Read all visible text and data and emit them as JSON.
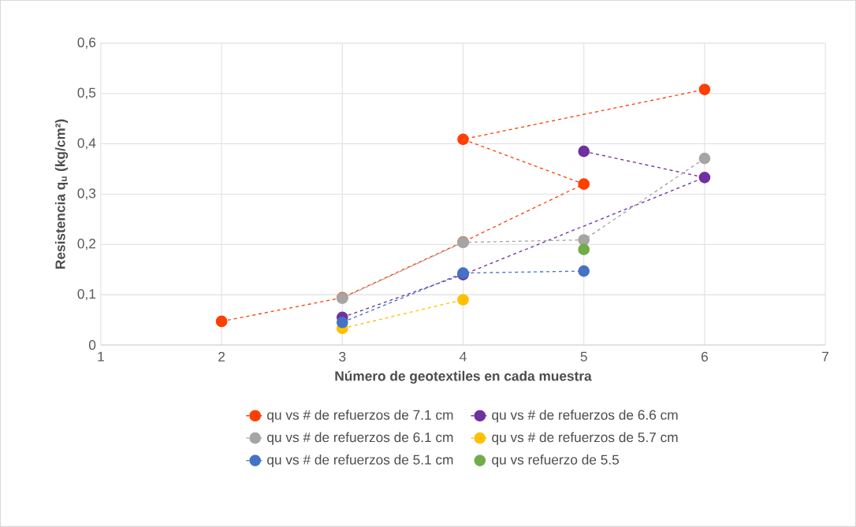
{
  "chart_data": {
    "type": "line",
    "xlabel": "Número de geotextiles en cada muestra",
    "ylabel": "Resistencia q$_{u}$ (kg/cm²)",
    "xlim": [
      1,
      7
    ],
    "xticks": [
      1,
      2,
      3,
      4,
      5,
      6,
      7
    ],
    "ylim": [
      0,
      0.6
    ],
    "yticks": [
      0,
      {
        "value": 0.1,
        "label": "0,1"
      },
      {
        "value": 0.2,
        "label": "0,2"
      },
      {
        "value": 0.3,
        "label": "0,3"
      },
      {
        "value": 0.4,
        "label": "0,4"
      },
      {
        "value": 0.5,
        "label": "0,5"
      },
      {
        "value": 0.6,
        "label": "0,6"
      }
    ],
    "grid": true,
    "legend": "bottom",
    "marker": "circle",
    "series": [
      {
        "name": "qu vs # de refuerzos de 7.1 cm",
        "color": "#ff3f00",
        "line_style": "dashed",
        "x": [
          2,
          3,
          4,
          5,
          4,
          6
        ],
        "values": [
          0.047,
          0.094,
          0.205,
          0.32,
          0.409,
          0.508
        ]
      },
      {
        "name": "qu vs # de refuerzos de 6.6 cm",
        "color": "#7030a0",
        "line_style": "dashed",
        "x": [
          3,
          4,
          6,
          5
        ],
        "values": [
          0.055,
          0.14,
          0.333,
          0.385
        ]
      },
      {
        "name": "qu vs # de  refuerzos de 6.1 cm",
        "color": "#a5a5a5",
        "line_style": "dashed",
        "x": [
          3,
          4,
          5,
          6
        ],
        "values": [
          0.093,
          0.204,
          0.209,
          0.371
        ]
      },
      {
        "name": "qu vs # de refuerzos de 5.7 cm",
        "color": "#ffc000",
        "line_style": "dashed",
        "x": [
          3,
          4
        ],
        "values": [
          0.033,
          0.09
        ]
      },
      {
        "name": "qu vs # de refuerzos  de 5.1 cm",
        "color": "#4472c4",
        "line_style": "dashed",
        "x": [
          3,
          4,
          5
        ],
        "values": [
          0.045,
          0.143,
          0.147
        ]
      },
      {
        "name": "qu vs refuerzo de 5.5",
        "color": "#70ad47",
        "type": "scatter",
        "x": [
          5
        ],
        "values": [
          0.19
        ]
      }
    ]
  }
}
